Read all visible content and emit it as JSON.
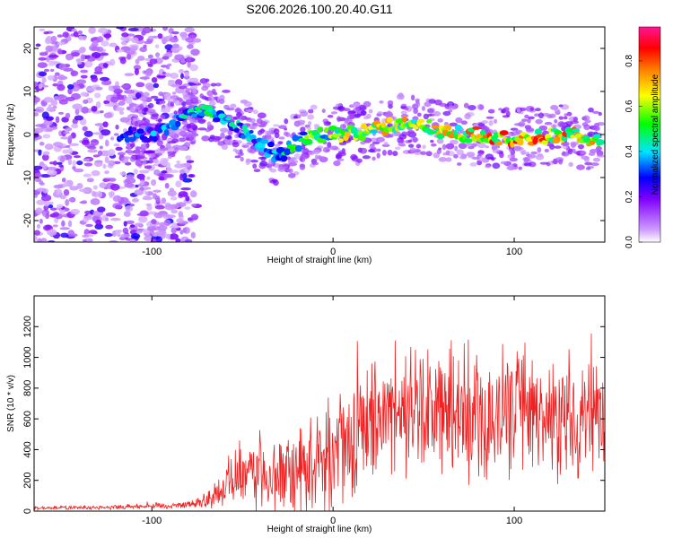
{
  "chart_data": [
    {
      "type": "heatmap",
      "title": "S206.2026.100.20.40.G11",
      "xlabel": "Height of straight line (km)",
      "ylabel": "Frequency (Hz)",
      "xlim": [
        -165,
        150
      ],
      "ylim": [
        -25,
        25
      ],
      "xticks": [
        -100,
        0,
        100
      ],
      "xtick_labels": [
        "-100",
        "0",
        "100"
      ],
      "yticks": [
        -20,
        -10,
        0,
        10,
        20
      ],
      "ytick_labels": [
        "-20",
        "-10",
        "0",
        "10",
        "20"
      ],
      "colorbar": {
        "label": "Normalized spectral amplitude",
        "range": [
          0,
          0.95
        ],
        "ticks": [
          0,
          0.2,
          0.4,
          0.6,
          0.8
        ],
        "tick_labels": [
          "0.0",
          "0.2",
          "0.4",
          "0.6",
          "0.8"
        ],
        "colormap": [
          "#ffffff",
          "#cc99ff",
          "#7f00ff",
          "#0000ff",
          "#00e5ff",
          "#00ff00",
          "#ffff00",
          "#ff7f00",
          "#ff0000",
          "#ff1493"
        ]
      },
      "noise_region_x": [
        -165,
        -75
      ],
      "ridge": {
        "x": [
          -115,
          -100,
          -90,
          -80,
          -70,
          -60,
          -50,
          -40,
          -30,
          -20,
          -10,
          0,
          10,
          20,
          30,
          40,
          50,
          60,
          70,
          80,
          90,
          100,
          110,
          120,
          130,
          140,
          148
        ],
        "frequency": [
          0,
          0,
          2,
          5,
          6,
          4,
          1,
          -2,
          -5,
          -2,
          0,
          0,
          0,
          1,
          2,
          3,
          2,
          1,
          0,
          0,
          -1,
          -1,
          -1,
          0,
          0,
          -1,
          -2
        ],
        "amplitude": [
          0.35,
          0.4,
          0.45,
          0.5,
          0.5,
          0.45,
          0.45,
          0.4,
          0.45,
          0.55,
          0.6,
          0.65,
          0.7,
          0.7,
          0.75,
          0.75,
          0.7,
          0.75,
          0.75,
          0.8,
          0.85,
          0.85,
          0.85,
          0.85,
          0.8,
          0.75,
          0.7
        ]
      }
    },
    {
      "type": "line",
      "xlabel": "Height of straight line (km)",
      "ylabel": "SNR (10 * v/v)",
      "xlim": [
        -165,
        150
      ],
      "ylim": [
        0,
        1400
      ],
      "xticks": [
        -100,
        0,
        100
      ],
      "xtick_labels": [
        "-100",
        "0",
        "100"
      ],
      "yticks": [
        0,
        200,
        400,
        600,
        800,
        1000,
        1200
      ],
      "ytick_labels": [
        "0",
        "200",
        "400",
        "600",
        "800",
        "1000",
        "1200"
      ],
      "color": "#ee2222",
      "envelope": {
        "x": [
          -165,
          -120,
          -80,
          -70,
          -60,
          -50,
          -40,
          -30,
          -20,
          -10,
          0,
          10,
          20,
          30,
          40,
          50,
          60,
          70,
          80,
          90,
          100,
          110,
          120,
          130,
          140,
          150
        ],
        "mean": [
          20,
          25,
          40,
          70,
          140,
          220,
          250,
          230,
          250,
          300,
          380,
          480,
          560,
          620,
          640,
          640,
          660,
          650,
          640,
          620,
          600,
          620,
          610,
          600,
          590,
          580
        ],
        "spread": [
          10,
          15,
          25,
          60,
          120,
          220,
          260,
          240,
          280,
          320,
          360,
          380,
          400,
          420,
          420,
          420,
          420,
          420,
          420,
          420,
          400,
          400,
          400,
          400,
          380,
          360
        ]
      }
    }
  ]
}
